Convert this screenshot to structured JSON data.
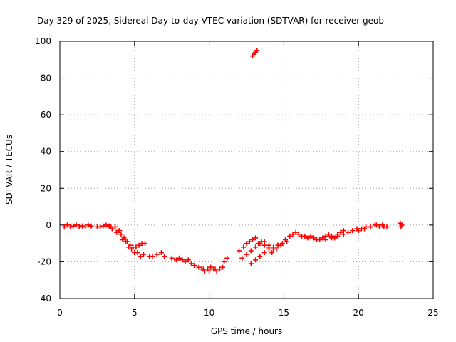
{
  "chart_data": {
    "type": "scatter",
    "title": "Day 329 of 2025, Sidereal Day-to-day VTEC variation (SDTVAR) for receiver geob",
    "xlabel": "GPS time / hours",
    "ylabel": "SDTVAR / TECUs",
    "xlim": [
      0,
      25
    ],
    "ylim": [
      -40,
      100
    ],
    "xticks": [
      0,
      5,
      10,
      15,
      20,
      25
    ],
    "yticks": [
      -40,
      -20,
      0,
      20,
      40,
      60,
      80,
      100
    ],
    "xtick_labels": [
      "0",
      "5",
      "10",
      "15",
      "20",
      "25"
    ],
    "ytick_labels": [
      "-40",
      "-20",
      "0",
      "20",
      "40",
      "60",
      "80",
      "100"
    ],
    "grid": true,
    "marker": "+",
    "color": "#ff0000",
    "series": [
      {
        "name": "SDTVAR",
        "x": [
          0.3,
          0.5,
          0.7,
          0.9,
          1.1,
          1.3,
          1.5,
          1.7,
          1.9,
          2.1,
          2.5,
          2.7,
          2.9,
          3.1,
          3.3,
          3.5,
          3.7,
          3.9,
          4.1,
          4.3,
          4.5,
          4.7,
          4.9,
          5.1,
          5.3,
          5.5,
          5.7,
          3.4,
          3.8,
          4.2,
          4.6,
          5.0,
          5.4,
          4.0,
          4.4,
          4.8,
          5.2,
          5.6,
          6.0,
          6.2,
          6.5,
          6.8,
          7.0,
          7.5,
          7.8,
          8.0,
          8.2,
          8.4,
          8.6,
          8.8,
          9.0,
          9.3,
          9.5,
          9.7,
          9.9,
          10.1,
          10.3,
          10.5,
          10.7,
          10.9,
          11.0,
          11.2,
          9.6,
          10.0,
          10.4,
          12.0,
          12.3,
          12.5,
          12.7,
          12.9,
          13.1,
          13.3,
          13.5,
          13.7,
          12.2,
          12.5,
          12.8,
          13.1,
          13.4,
          13.7,
          14.0,
          12.8,
          13.1,
          13.4,
          13.7,
          14.0,
          14.3,
          14.6,
          14.0,
          14.3,
          14.6,
          14.9,
          15.2,
          14.2,
          14.5,
          14.8,
          15.1,
          15.4,
          15.6,
          15.8,
          16.0,
          16.2,
          16.4,
          16.6,
          16.8,
          17.0,
          17.2,
          17.4,
          17.6,
          17.8,
          18.0,
          18.2,
          18.4,
          18.6,
          18.8,
          19.0,
          17.8,
          18.2,
          18.6,
          19.0,
          19.3,
          19.6,
          19.9,
          20.2,
          20.5,
          20.8,
          21.1,
          21.4,
          21.7,
          21.9,
          20.0,
          20.4,
          20.8,
          21.2,
          21.6,
          22.8,
          22.9,
          22.85,
          12.9,
          13.0,
          13.1,
          13.2
        ],
        "y": [
          -1,
          0,
          -1,
          -0.5,
          0,
          -1,
          -0.5,
          -1,
          0,
          -0.5,
          -1,
          -1,
          -0.5,
          0,
          -0.5,
          -2,
          -1,
          -3,
          -5,
          -7,
          -9,
          -11,
          -12,
          -12,
          -11,
          -10,
          -10,
          -1,
          -4,
          -8,
          -12,
          -15,
          -17,
          -3,
          -9,
          -13,
          -15,
          -16,
          -17,
          -17,
          -16,
          -15,
          -17,
          -18,
          -19,
          -18,
          -19,
          -20,
          -19,
          -21,
          -22,
          -23,
          -24,
          -25,
          -24,
          -23,
          -24,
          -25,
          -24,
          -23,
          -20,
          -18,
          -24,
          -25,
          -24,
          -14,
          -12,
          -10,
          -9,
          -8,
          -7,
          -10,
          -9,
          -11,
          -18,
          -16,
          -14,
          -12,
          -10,
          -9,
          -11,
          -21,
          -19,
          -17,
          -15,
          -13,
          -12,
          -11,
          -12,
          -13,
          -11,
          -10,
          -9,
          -15,
          -13,
          -11,
          -8,
          -6,
          -5,
          -4,
          -5,
          -6,
          -6,
          -7,
          -6,
          -7,
          -8,
          -8,
          -7,
          -6,
          -5,
          -6,
          -7,
          -5,
          -4,
          -3,
          -8,
          -7,
          -6,
          -5,
          -4,
          -3,
          -2,
          -2,
          -1,
          -1,
          0,
          -1,
          -1,
          -1,
          -3,
          -2,
          -1,
          0,
          0,
          1,
          0,
          -1,
          92,
          93,
          94,
          95
        ]
      }
    ]
  }
}
